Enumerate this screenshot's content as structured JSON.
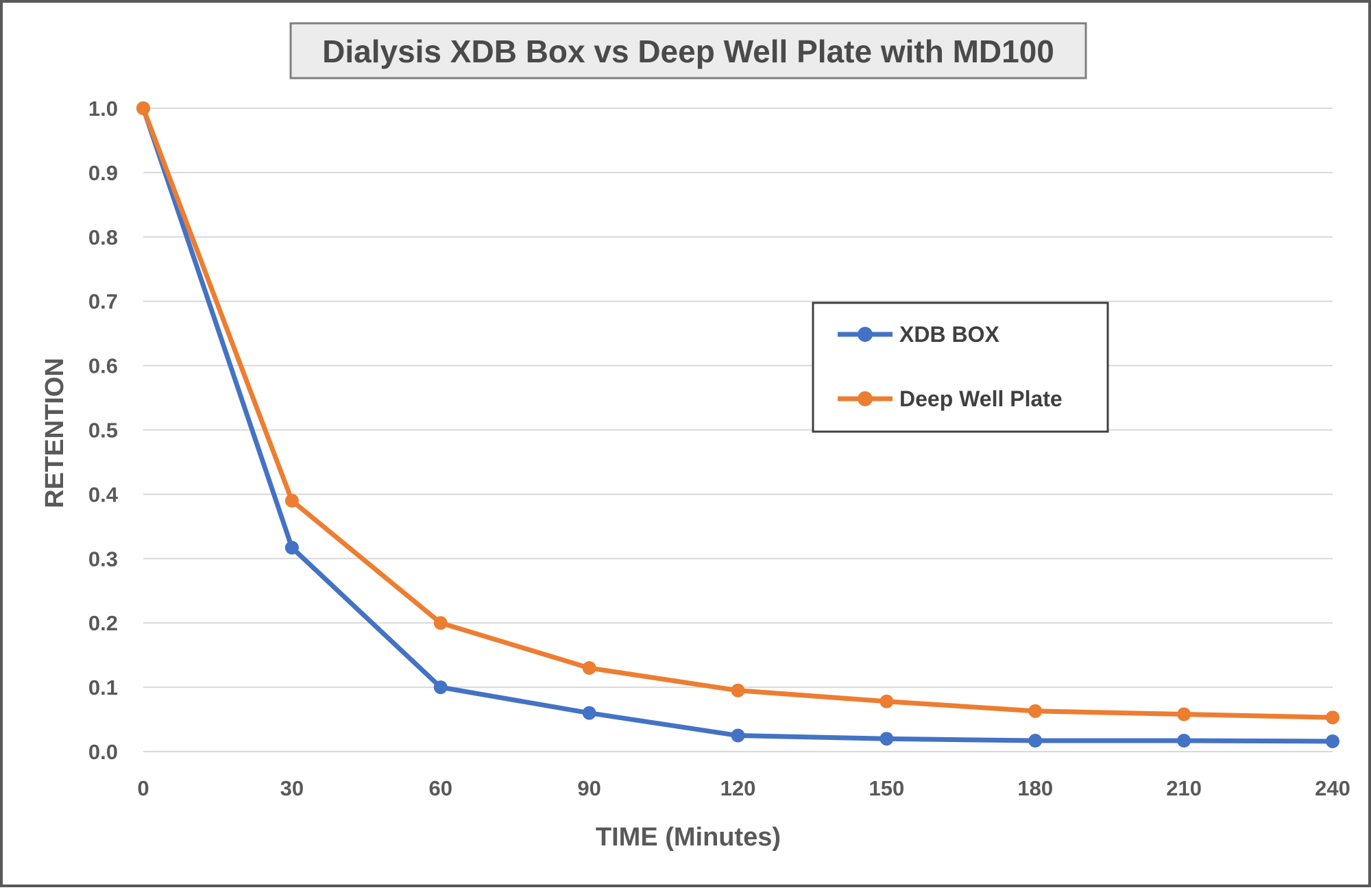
{
  "chart_data": {
    "type": "line",
    "title": "Dialysis XDB Box vs Deep Well Plate with MD100",
    "xlabel": "TIME (Minutes)",
    "ylabel": "RETENTION",
    "x": [
      0,
      30,
      60,
      90,
      120,
      150,
      180,
      210,
      240
    ],
    "x_ticks": [
      "0",
      "30",
      "60",
      "90",
      "120",
      "150",
      "180",
      "210",
      "240"
    ],
    "y_ticks": [
      "0.0",
      "0.1",
      "0.2",
      "0.3",
      "0.4",
      "0.5",
      "0.6",
      "0.7",
      "0.8",
      "0.9",
      "1.0"
    ],
    "xlim": [
      0,
      240
    ],
    "ylim": [
      0,
      1.0
    ],
    "grid": "horizontal",
    "legend_position": "right",
    "series": [
      {
        "name": "XDB BOX",
        "color": "#4472c4",
        "values": [
          1.0,
          0.317,
          0.1,
          0.06,
          0.025,
          0.02,
          0.017,
          0.017,
          0.016
        ]
      },
      {
        "name": "Deep Well Plate",
        "color": "#ed7d31",
        "values": [
          1.0,
          0.39,
          0.2,
          0.13,
          0.095,
          0.078,
          0.063,
          0.058,
          0.053
        ]
      }
    ]
  }
}
